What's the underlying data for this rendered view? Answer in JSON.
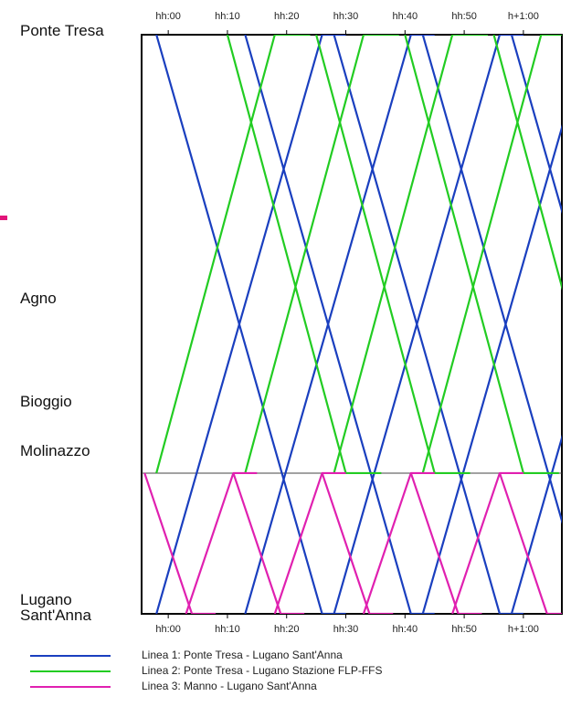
{
  "chart_data": {
    "type": "line",
    "title": "",
    "x_ticks_top": [
      "hh:00",
      "hh:10",
      "hh:20",
      "hh:30",
      "hh:40",
      "hh:50",
      "h+1:00"
    ],
    "x_ticks_bottom": [
      "hh:00",
      "hh:10",
      "hh:20",
      "hh:30",
      "hh:40",
      "hh:50",
      "h+1:00"
    ],
    "x_tick_minutes": [
      0,
      10,
      20,
      30,
      40,
      50,
      60
    ],
    "xlim": [
      -4.5,
      66.5
    ],
    "stations": [
      {
        "name": "Ponte Tresa",
        "pos": 0
      },
      {
        "name": "Agno",
        "pos": 0.485
      },
      {
        "name": "Bioggio",
        "pos": 0.705
      },
      {
        "name": "Molinazzo",
        "pos": 0.757
      },
      {
        "name": "Lugano Sant'Anna",
        "pos": 1.0
      }
    ],
    "station_labels": [
      "Ponte Tresa",
      "Agno",
      "Bioggio",
      "Molinazzo",
      "Lugano\nSant'Anna"
    ],
    "series": [
      {
        "name": "Linea 1: Ponte Tresa - Lugano Sant'Anna",
        "color": "#1a3fbf",
        "segment": [
          0,
          1
        ],
        "departures_a": [
          -2,
          13,
          28,
          43,
          58
        ],
        "departures_b": [
          -2,
          13,
          28,
          43,
          58
        ],
        "run_min": 28,
        "dwell_a": 4,
        "dwell_b": 4
      },
      {
        "name": "Linea 2: Ponte Tresa - Lugano Stazione FLP-FFS",
        "color": "#22cc22",
        "segment": [
          0,
          0.757
        ],
        "departures_a": [
          10,
          25,
          40,
          55
        ],
        "departures_b": [
          -2,
          13,
          28,
          43
        ],
        "run_min": 20,
        "dwell_a": 6,
        "dwell_b": 6
      },
      {
        "name": "Linea 3: Manno - Lugano Sant'Anna",
        "color": "#e020b0",
        "segment": [
          0.757,
          1
        ],
        "departures_a": [
          -4,
          11,
          26,
          41,
          56
        ],
        "departures_b": [
          3,
          18,
          33,
          48
        ],
        "run_min": 8,
        "dwell_a": 4,
        "dwell_b": 4
      }
    ],
    "grid": false
  },
  "legend": [
    {
      "label": "Linea 1: Ponte Tresa - Lugano Sant'Anna",
      "color": "#1a3fbf"
    },
    {
      "label": "Linea 2: Ponte Tresa - Lugano Stazione FLP-FFS",
      "color": "#22cc22"
    },
    {
      "label": "Linea 3: Manno - Lugano Sant'Anna",
      "color": "#e020b0"
    }
  ]
}
